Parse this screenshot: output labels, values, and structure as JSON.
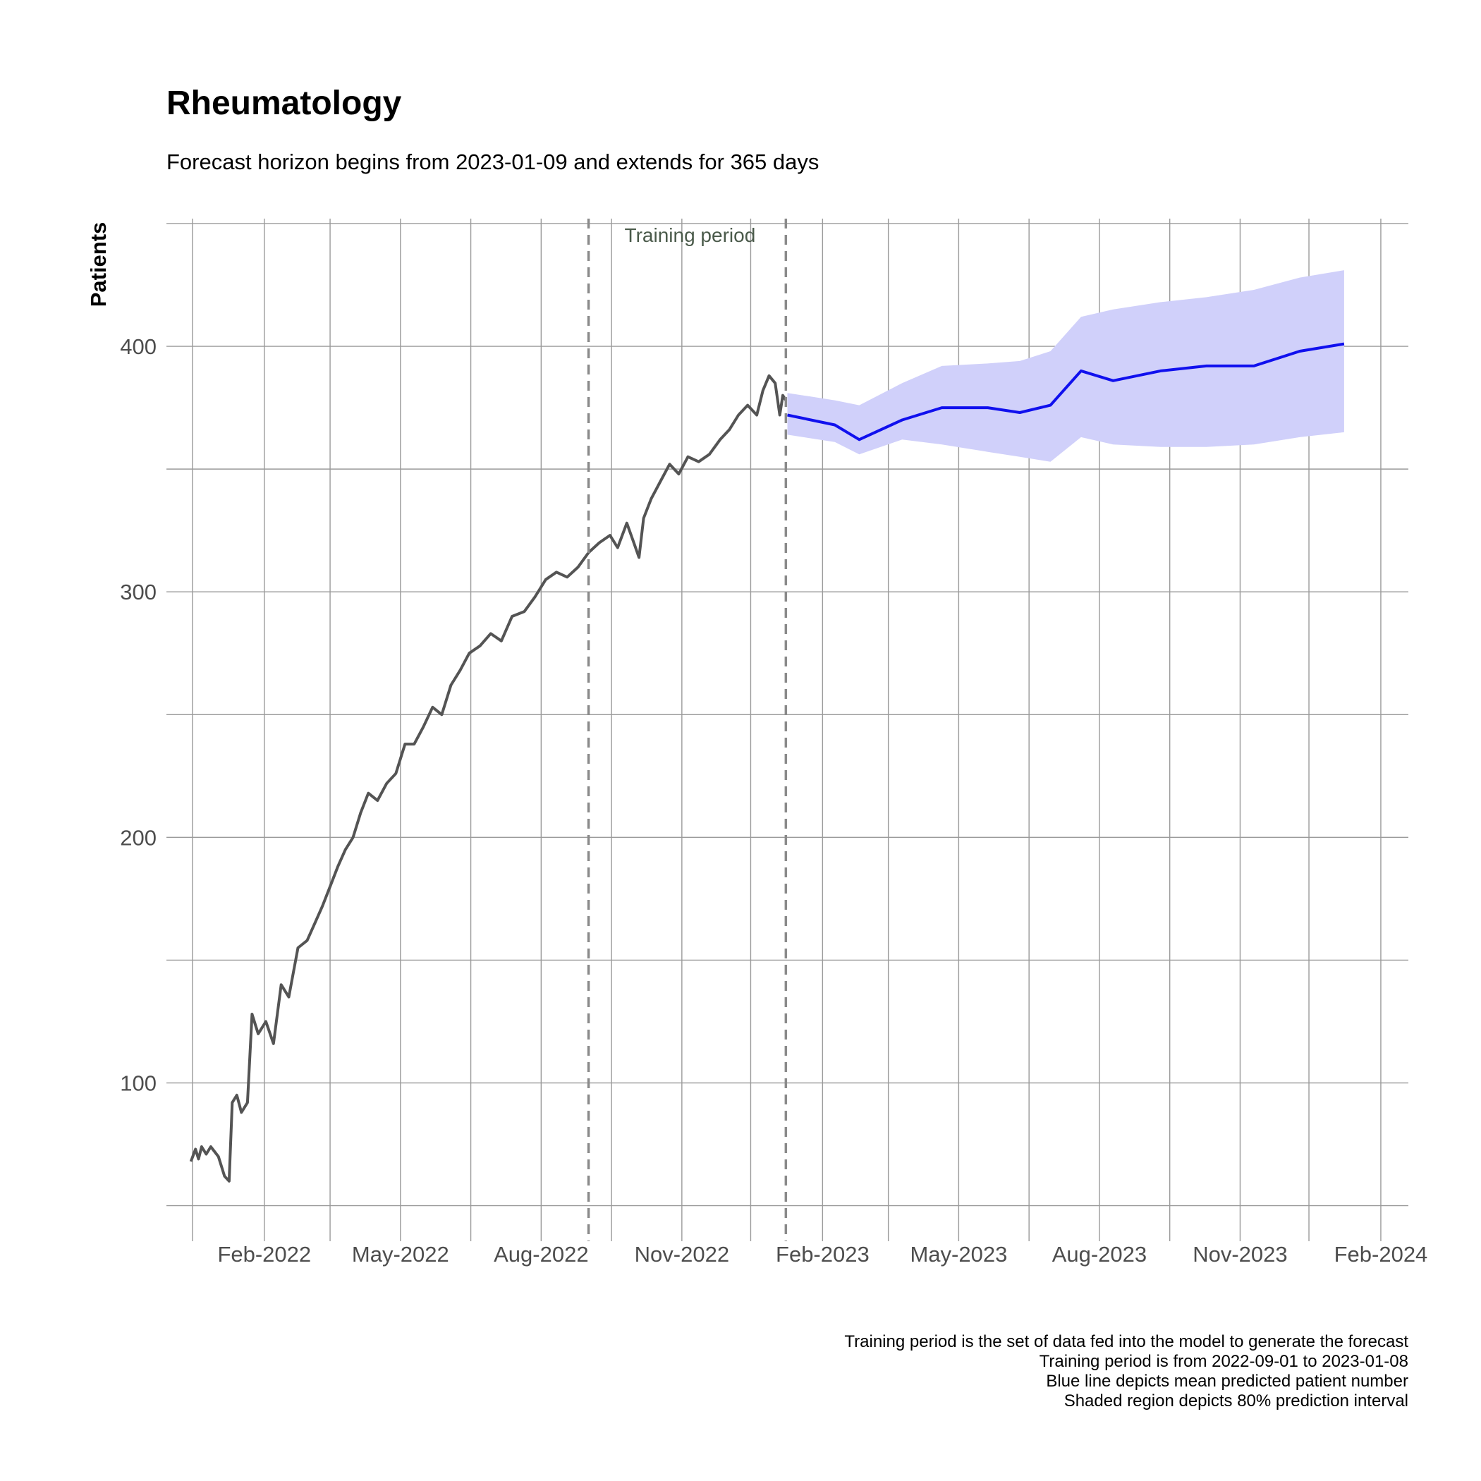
{
  "chart_data": {
    "type": "line",
    "title": "Rheumatology",
    "subtitle": "Forecast horizon begins from 2023-01-09 and extends for 365 days",
    "ylabel": "Patients",
    "xlabel": "",
    "x_ticks": [
      "Feb-2022",
      "May-2022",
      "Aug-2022",
      "Nov-2022",
      "Feb-2023",
      "May-2023",
      "Aug-2023",
      "Nov-2023",
      "Feb-2024"
    ],
    "y_ticks": [
      "100",
      "200",
      "300",
      "400"
    ],
    "ylim": [
      45,
      452
    ],
    "xlim": [
      "2021-11-29",
      "2024-02-19"
    ],
    "grid": true,
    "annotation": "Training period",
    "training_period": [
      "2022-09-01",
      "2023-01-08"
    ],
    "colors": {
      "observed": "#545454",
      "forecast": "#1010ee",
      "interval": "#d0d0fa",
      "vline": "#8a8a8a"
    },
    "series": [
      {
        "role": "observed",
        "points": [
          [
            "2021-12-15",
            68
          ],
          [
            "2021-12-18",
            73
          ],
          [
            "2021-12-20",
            69
          ],
          [
            "2021-12-22",
            74
          ],
          [
            "2021-12-25",
            71
          ],
          [
            "2021-12-28",
            74
          ],
          [
            "2022-01-02",
            70
          ],
          [
            "2022-01-06",
            62
          ],
          [
            "2022-01-09",
            60
          ],
          [
            "2022-01-11",
            92
          ],
          [
            "2022-01-14",
            95
          ],
          [
            "2022-01-17",
            88
          ],
          [
            "2022-01-21",
            92
          ],
          [
            "2022-01-24",
            128
          ],
          [
            "2022-01-28",
            120
          ],
          [
            "2022-02-02",
            125
          ],
          [
            "2022-02-07",
            116
          ],
          [
            "2022-02-12",
            140
          ],
          [
            "2022-02-17",
            135
          ],
          [
            "2022-02-23",
            155
          ],
          [
            "2022-03-01",
            158
          ],
          [
            "2022-03-06",
            165
          ],
          [
            "2022-03-11",
            172
          ],
          [
            "2022-03-16",
            180
          ],
          [
            "2022-03-21",
            188
          ],
          [
            "2022-03-26",
            195
          ],
          [
            "2022-03-31",
            200
          ],
          [
            "2022-04-05",
            210
          ],
          [
            "2022-04-10",
            218
          ],
          [
            "2022-04-16",
            215
          ],
          [
            "2022-04-22",
            222
          ],
          [
            "2022-04-28",
            226
          ],
          [
            "2022-05-04",
            238
          ],
          [
            "2022-05-10",
            238
          ],
          [
            "2022-05-16",
            245
          ],
          [
            "2022-05-22",
            253
          ],
          [
            "2022-05-28",
            250
          ],
          [
            "2022-06-03",
            262
          ],
          [
            "2022-06-09",
            268
          ],
          [
            "2022-06-15",
            275
          ],
          [
            "2022-06-22",
            278
          ],
          [
            "2022-06-29",
            283
          ],
          [
            "2022-07-06",
            280
          ],
          [
            "2022-07-13",
            290
          ],
          [
            "2022-07-21",
            292
          ],
          [
            "2022-07-28",
            298
          ],
          [
            "2022-08-04",
            305
          ],
          [
            "2022-08-11",
            308
          ],
          [
            "2022-08-18",
            306
          ],
          [
            "2022-08-25",
            310
          ],
          [
            "2022-09-01",
            316
          ],
          [
            "2022-09-08",
            320
          ],
          [
            "2022-09-15",
            323
          ],
          [
            "2022-09-20",
            318
          ],
          [
            "2022-09-26",
            328
          ],
          [
            "2022-09-30",
            321
          ],
          [
            "2022-10-04",
            314
          ],
          [
            "2022-10-07",
            330
          ],
          [
            "2022-10-12",
            338
          ],
          [
            "2022-10-18",
            345
          ],
          [
            "2022-10-24",
            352
          ],
          [
            "2022-10-30",
            348
          ],
          [
            "2022-11-05",
            355
          ],
          [
            "2022-11-12",
            353
          ],
          [
            "2022-11-19",
            356
          ],
          [
            "2022-11-26",
            362
          ],
          [
            "2022-12-02",
            366
          ],
          [
            "2022-12-08",
            372
          ],
          [
            "2022-12-14",
            376
          ],
          [
            "2022-12-20",
            372
          ],
          [
            "2022-12-24",
            382
          ],
          [
            "2022-12-28",
            388
          ],
          [
            "2023-01-01",
            385
          ],
          [
            "2023-01-04",
            372
          ],
          [
            "2023-01-06",
            380
          ],
          [
            "2023-01-08",
            378
          ]
        ]
      },
      {
        "role": "forecast",
        "name": "Blue line depicts mean predicted patient number",
        "points": [
          [
            "2023-01-09",
            372
          ],
          [
            "2023-02-09",
            368
          ],
          [
            "2023-02-25",
            362
          ],
          [
            "2023-03-25",
            370
          ],
          [
            "2023-04-20",
            375
          ],
          [
            "2023-05-20",
            375
          ],
          [
            "2023-06-10",
            373
          ],
          [
            "2023-06-30",
            376
          ],
          [
            "2023-07-20",
            390
          ],
          [
            "2023-08-10",
            386
          ],
          [
            "2023-09-10",
            390
          ],
          [
            "2023-10-10",
            392
          ],
          [
            "2023-11-10",
            392
          ],
          [
            "2023-12-10",
            398
          ],
          [
            "2024-01-08",
            401
          ]
        ],
        "lower": [
          364,
          361,
          356,
          362,
          360,
          357,
          355,
          353,
          363,
          360,
          359,
          359,
          360,
          363,
          365
        ],
        "upper": [
          381,
          378,
          376,
          385,
          392,
          393,
          394,
          398,
          412,
          415,
          418,
          420,
          423,
          428,
          431
        ]
      }
    ]
  },
  "caption": [
    "Training period is the set of data fed into the model to generate the forecast",
    "Training period is from 2022-09-01 to 2023-01-08",
    "Blue line depicts mean predicted patient number",
    "Shaded region depicts 80% prediction interval"
  ]
}
